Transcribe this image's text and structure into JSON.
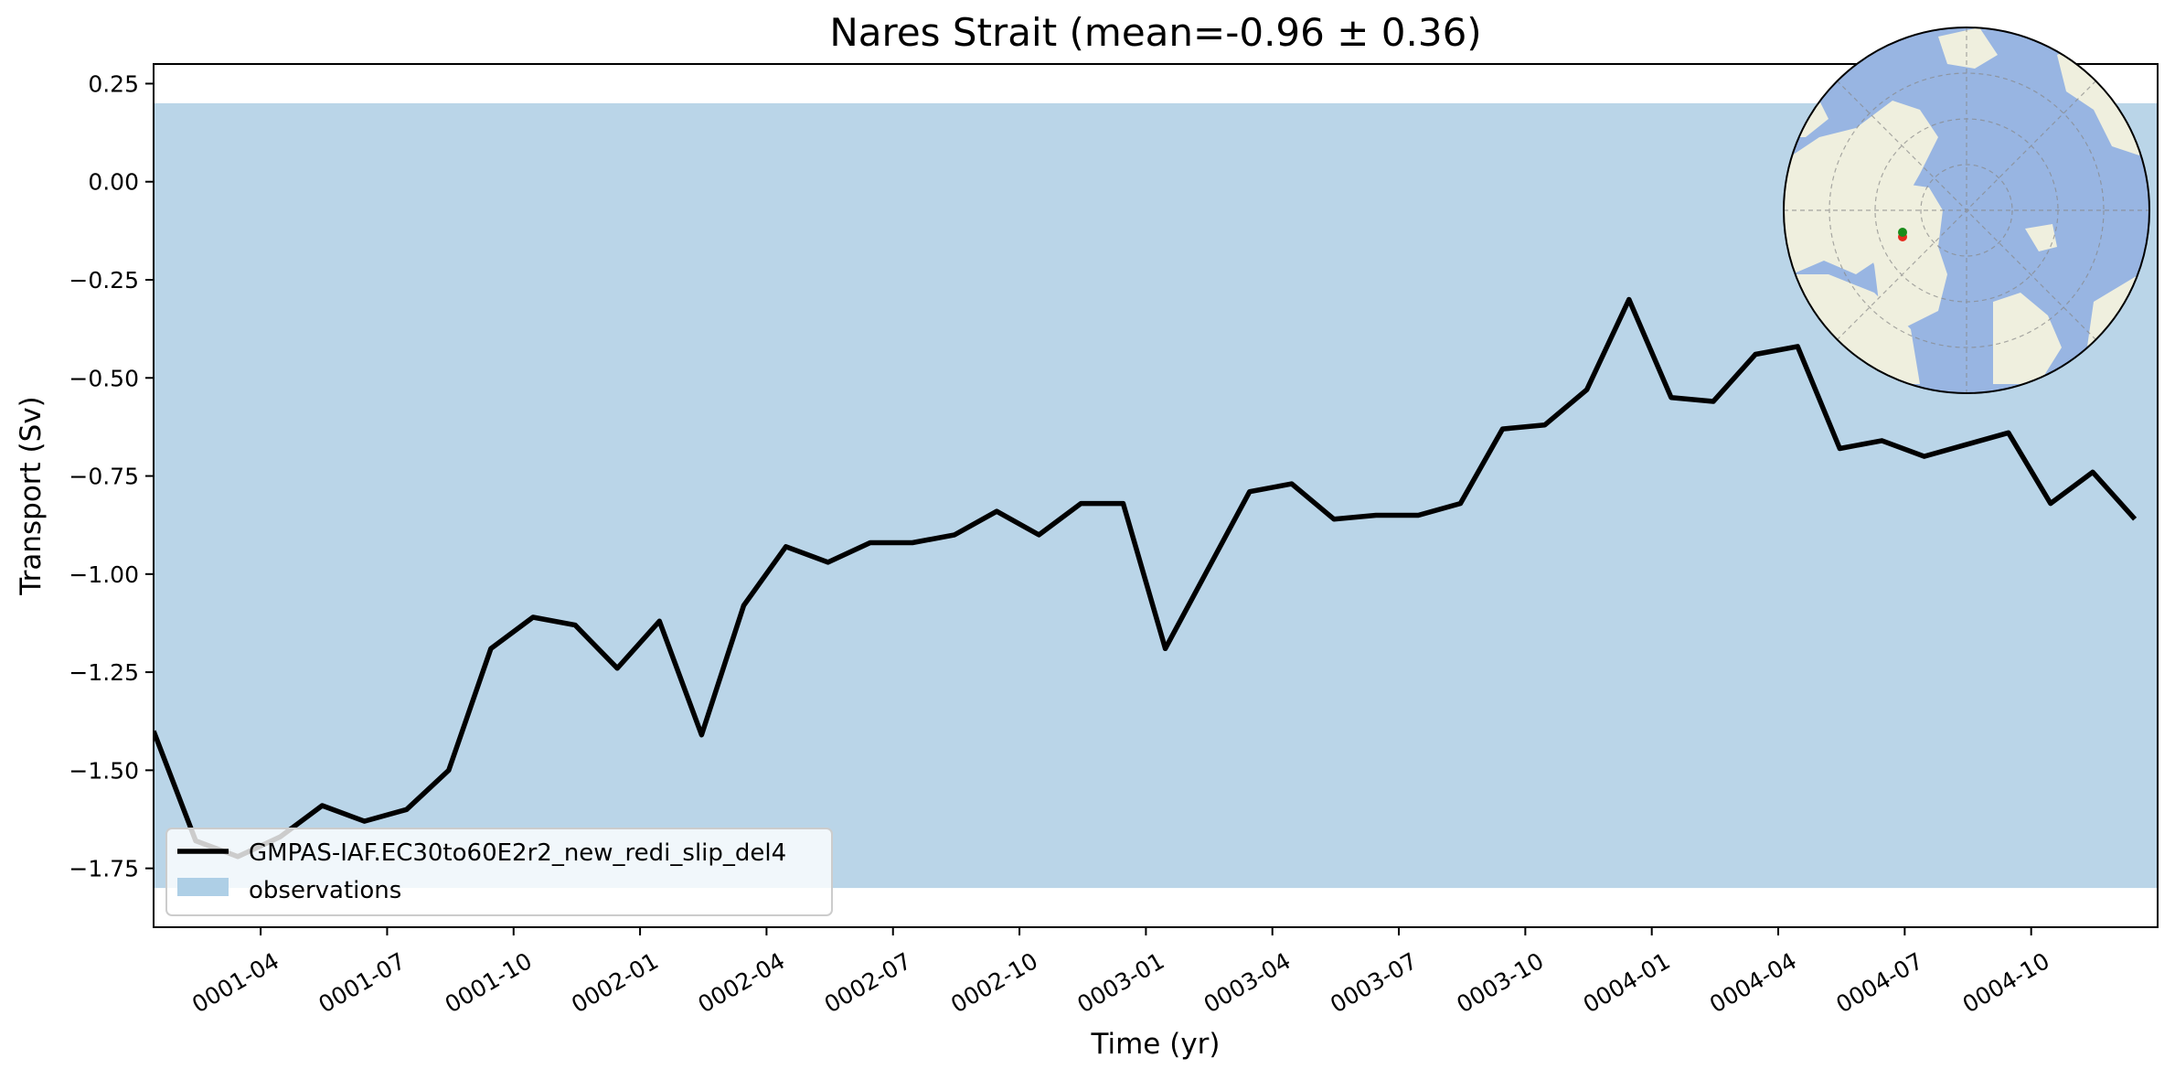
{
  "chart_data": {
    "type": "line",
    "title": "Nares Strait (mean=-0.96 ± 0.36)",
    "xlabel": "Time (yr)",
    "ylabel": "Transport (Sv)",
    "ylim": [
      -1.9,
      0.3
    ],
    "xlim": [
      "0001-01-15",
      "0005-01-01"
    ],
    "yticks": [
      0.25,
      0.0,
      -0.25,
      -0.5,
      -0.75,
      -1.0,
      -1.25,
      -1.5,
      -1.75
    ],
    "ytick_labels": [
      "0.25",
      "0.00",
      "−0.25",
      "−0.50",
      "−0.75",
      "−1.00",
      "−1.25",
      "−1.50",
      "−1.75"
    ],
    "xticks": [
      "0001-04-01",
      "0001-07-01",
      "0001-10-01",
      "0002-01-01",
      "0002-04-01",
      "0002-07-01",
      "0002-10-01",
      "0003-01-01",
      "0003-04-01",
      "0003-07-01",
      "0003-10-01",
      "0004-01-01",
      "0004-04-01",
      "0004-07-01",
      "0004-10-01"
    ],
    "xtick_labels": [
      "0001-04",
      "0001-07",
      "0001-10",
      "0002-01",
      "0002-04",
      "0002-07",
      "0002-10",
      "0003-01",
      "0003-04",
      "0003-07",
      "0003-10",
      "0004-01",
      "0004-04",
      "0004-07",
      "0004-10"
    ],
    "grid": false,
    "legend_position": "lower-left",
    "observations_band": {
      "name": "observations",
      "range": [
        -1.8,
        0.2
      ],
      "color": "#bad5e8",
      "legend_color": "#aecfe6"
    },
    "series": [
      {
        "name": "GMPAS-IAF.EC30to60E2r2_new_redi_slip_del4",
        "color": "#000000",
        "x": [
          "0001-01-15",
          "0001-02-15",
          "0001-03-15",
          "0001-04-15",
          "0001-05-15",
          "0001-06-15",
          "0001-07-15",
          "0001-08-15",
          "0001-09-15",
          "0001-10-15",
          "0001-11-15",
          "0001-12-15",
          "0002-01-15",
          "0002-02-15",
          "0002-03-15",
          "0002-04-15",
          "0002-05-15",
          "0002-06-15",
          "0002-07-15",
          "0002-08-15",
          "0002-09-15",
          "0002-10-15",
          "0002-11-15",
          "0002-12-15",
          "0003-01-15",
          "0003-02-15",
          "0003-03-15",
          "0003-04-15",
          "0003-05-15",
          "0003-06-15",
          "0003-07-15",
          "0003-08-15",
          "0003-09-15",
          "0003-10-15",
          "0003-11-15",
          "0003-12-15",
          "0004-01-15",
          "0004-02-15",
          "0004-03-15",
          "0004-04-15",
          "0004-05-15",
          "0004-06-15",
          "0004-07-15",
          "0004-08-15",
          "0004-09-15",
          "0004-10-15",
          "0004-11-15",
          "0004-12-15"
        ],
        "values": [
          -1.4,
          -1.68,
          -1.72,
          -1.67,
          -1.59,
          -1.63,
          -1.6,
          -1.5,
          -1.19,
          -1.11,
          -1.13,
          -1.24,
          -1.12,
          -1.41,
          -1.08,
          -0.93,
          -0.97,
          -0.92,
          -0.92,
          -0.9,
          -0.84,
          -0.9,
          -0.82,
          -0.82,
          -1.19,
          -0.99,
          -0.79,
          -0.77,
          -0.86,
          -0.85,
          -0.85,
          -0.82,
          -0.63,
          -0.62,
          -0.53,
          -0.3,
          -0.55,
          -0.56,
          -0.44,
          -0.42,
          -0.68,
          -0.66,
          -0.7,
          -0.67,
          -0.64,
          -0.82,
          -0.74,
          -0.86
        ]
      }
    ],
    "inset_map": {
      "projection": "north-polar-stereographic",
      "ocean_color": "#98b5e2",
      "land_color": "#efefde",
      "markers": [
        {
          "name": "section-start-marker",
          "color": "#1a8c1a"
        },
        {
          "name": "section-end-marker",
          "color": "#e52b1d"
        }
      ]
    }
  }
}
